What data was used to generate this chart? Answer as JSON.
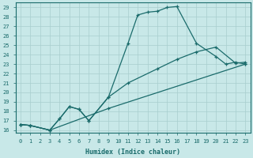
{
  "xlabel": "Humidex (Indice chaleur)",
  "background_color": "#c8e8e8",
  "grid_color": "#a8cece",
  "line_color": "#1a6b6b",
  "xlim": [
    -0.5,
    23.5
  ],
  "ylim": [
    15.7,
    29.5
  ],
  "yticks": [
    16,
    17,
    18,
    19,
    20,
    21,
    22,
    23,
    24,
    25,
    26,
    27,
    28,
    29
  ],
  "xticks": [
    0,
    1,
    2,
    3,
    4,
    5,
    6,
    7,
    8,
    9,
    10,
    11,
    12,
    13,
    14,
    15,
    16,
    17,
    18,
    19,
    20,
    21,
    22,
    23
  ],
  "line1_x": [
    0,
    1,
    3,
    4,
    5,
    6,
    7,
    9,
    11,
    12,
    13,
    14,
    15,
    16,
    18,
    20,
    21,
    22,
    23
  ],
  "line1_y": [
    16.6,
    16.5,
    16.0,
    17.2,
    18.5,
    18.2,
    17.0,
    19.5,
    25.2,
    28.2,
    28.5,
    28.6,
    29.0,
    29.1,
    25.2,
    23.8,
    23.0,
    23.2,
    23.0
  ],
  "line2_x": [
    0,
    1,
    3,
    4,
    5,
    6,
    7,
    9,
    11,
    14,
    16,
    18,
    20,
    22,
    23
  ],
  "line2_y": [
    16.6,
    16.5,
    16.0,
    17.2,
    18.5,
    18.2,
    17.0,
    19.5,
    21.0,
    22.5,
    23.5,
    24.3,
    24.8,
    23.1,
    23.2
  ],
  "line3_x": [
    0,
    1,
    3,
    9,
    23
  ],
  "line3_y": [
    16.6,
    16.5,
    16.0,
    18.3,
    23.0
  ]
}
